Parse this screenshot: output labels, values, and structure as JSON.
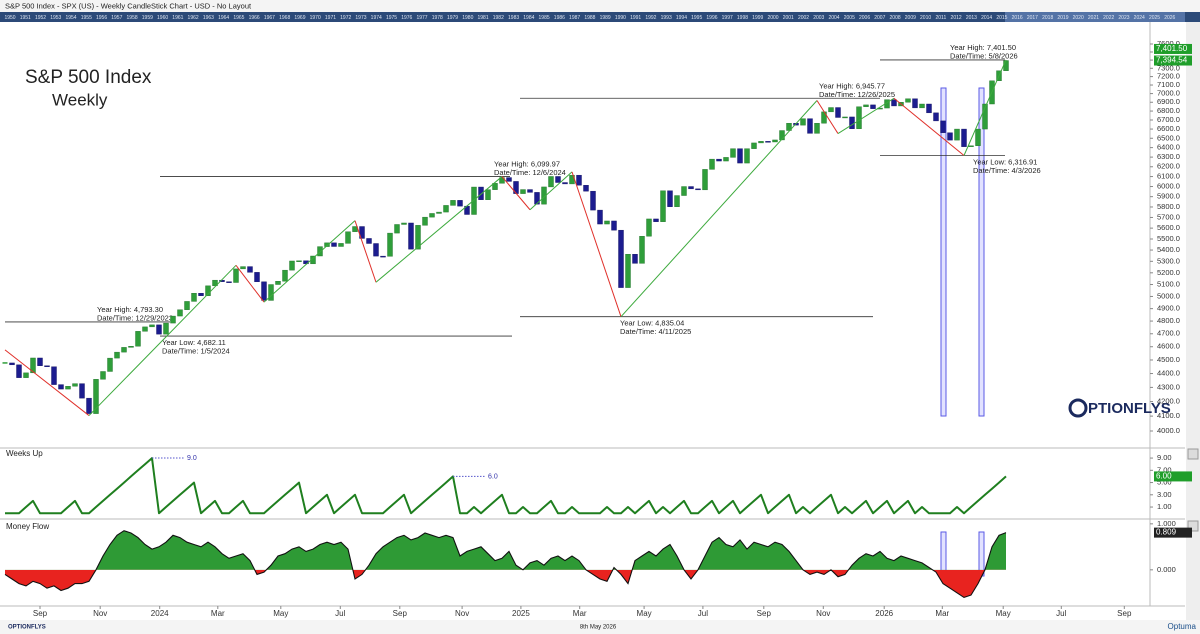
{
  "header": {
    "title": "S&P 500 Index - SPX (US) - Weekly CandleStick Chart - USD - No Layout"
  },
  "navigator_years": [
    1950,
    1951,
    1952,
    1953,
    1954,
    1955,
    1956,
    1957,
    1958,
    1959,
    1960,
    1961,
    1962,
    1963,
    1964,
    1965,
    1966,
    1967,
    1968,
    1969,
    1970,
    1971,
    1972,
    1973,
    1974,
    1975,
    1976,
    1977,
    1978,
    1979,
    1980,
    1981,
    1982,
    1983,
    1984,
    1985,
    1986,
    1987,
    1988,
    1989,
    1990,
    1991,
    1992,
    1993,
    1994,
    1995,
    1996,
    1997,
    1998,
    1999,
    2000,
    2001,
    2002,
    2003,
    2004,
    2005,
    2006,
    2007,
    2008,
    2009,
    2010,
    2011,
    2012,
    2013,
    2014,
    2015,
    2016,
    2017,
    2018,
    2019,
    2020,
    2021,
    2022,
    2023,
    2024,
    2025,
    2026
  ],
  "logo": {
    "text": "PTIONFLYS"
  },
  "footer": {
    "left": "OPTIONFLYS",
    "center": "8th May 2026",
    "right": "Optuma"
  },
  "chart_data": [
    {
      "type": "candlestick",
      "title": "S&P 500 Index",
      "subtitle": "Weekly",
      "color_up": "#2f9e3a",
      "color_down": "#1c1c8f",
      "close": [
        4478,
        4464,
        4370,
        4405,
        4515,
        4457,
        4450,
        4320,
        4288,
        4308,
        4327,
        4224,
        4117,
        4358,
        4415,
        4514,
        4559,
        4595,
        4604,
        4719,
        4754,
        4770,
        4697,
        4784,
        4840,
        4891,
        4959,
        5027,
        5006,
        5089,
        5137,
        5124,
        5117,
        5234,
        5254,
        5204,
        5123,
        4967,
        5100,
        5128,
        5223,
        5303,
        5305,
        5278,
        5347,
        5431,
        5465,
        5432,
        5460,
        5567,
        5615,
        5505,
        5459,
        5346,
        5344,
        5554,
        5634,
        5648,
        5408,
        5626,
        5703,
        5738,
        5751,
        5815,
        5864,
        5808,
        5728,
        5995,
        5870,
        5969,
        6032,
        6090,
        6051,
        5930,
        5970,
        5942,
        5827,
        5996,
        6101,
        6040,
        6026,
        6114,
        6013,
        5954,
        5770,
        5638,
        5667,
        5581,
        5074,
        5363,
        5282,
        5525,
        5686,
        5660,
        5958,
        5802,
        5911,
        6000,
        5977,
        5967,
        6173,
        6279,
        6259,
        6297,
        6389,
        6238,
        6389,
        6450,
        6467,
        6460,
        6482,
        6584,
        6664,
        6643,
        6715,
        6553,
        6664,
        6791,
        6840,
        6728,
        6734,
        6603,
        6849,
        6870,
        6827,
        6834,
        6930,
        6858,
        6900,
        6940,
        6836,
        6880,
        6780,
        6690,
        6560,
        6480,
        6600,
        6410,
        6420,
        6600,
        6880,
        7150,
        7270,
        7394.54
      ],
      "zigzag": {
        "x": [
          0,
          12,
          33,
          37,
          50,
          53,
          71,
          75,
          81,
          88,
          116,
          119,
          127,
          137,
          143
        ],
        "values": [
          4576,
          4103.78,
          5264.85,
          4953.56,
          5669.67,
          5119.26,
          6099.97,
          5773.31,
          6147.43,
          4835.04,
          6920.34,
          6550.78,
          6945.77,
          6316.91,
          7401.5
        ],
        "color_up": "#3daa3d",
        "color_down": "#e0302a"
      },
      "annotations": [
        {
          "label": "Year High: 4,793.30",
          "date": "Date/Time: 12/29/2023",
          "value": 4793.3
        },
        {
          "label": "Year Low: 4,682.11",
          "date": "Date/Time: 1/5/2024",
          "value": 4682.11
        },
        {
          "label": "Year High: 6,099.97",
          "date": "Date/Time: 12/6/2024",
          "value": 6099.97
        },
        {
          "label": "Year Low: 4,835.04",
          "date": "Date/Time: 4/11/2025",
          "value": 4835.04
        },
        {
          "label": "Year High: 6,945.77",
          "date": "Date/Time: 12/26/2025",
          "value": 6945.77
        },
        {
          "label": "Year Low: 6,316.91",
          "date": "Date/Time: 4/3/2026",
          "value": 6316.91
        },
        {
          "label": "Year High: 7,401.50",
          "date": "Date/Time: 5/8/2026",
          "value": 7401.5
        }
      ],
      "price_tags": [
        {
          "value": 7401.5,
          "label": "7,401.50"
        },
        {
          "value": 7394.54,
          "label": "7,394.54"
        }
      ],
      "log_scale": true,
      "xlim": [
        0,
        165
      ],
      "ylim": [
        4000,
        7600
      ],
      "yticks": [
        {
          "value": 4000,
          "label": "4000.0"
        },
        {
          "value": 4100,
          "label": "4100.0"
        },
        {
          "value": 4200,
          "label": "4200.0"
        },
        {
          "value": 4300,
          "label": "4300.0"
        },
        {
          "value": 4400,
          "label": "4400.0"
        },
        {
          "value": 4500,
          "label": "4500.0"
        },
        {
          "value": 4600,
          "label": "4600.0"
        },
        {
          "value": 4700,
          "label": "4700.0"
        },
        {
          "value": 4800,
          "label": "4800.0"
        },
        {
          "value": 4900,
          "label": "4900.0"
        },
        {
          "value": 5000,
          "label": "5000.0"
        },
        {
          "value": 5100,
          "label": "5100.0"
        },
        {
          "value": 5200,
          "label": "5200.0"
        },
        {
          "value": 5300,
          "label": "5300.0"
        },
        {
          "value": 5400,
          "label": "5400.0"
        },
        {
          "value": 5500,
          "label": "5500.0"
        },
        {
          "value": 5600,
          "label": "5600.0"
        },
        {
          "value": 5700,
          "label": "5700.0"
        },
        {
          "value": 5800,
          "label": "5800.0"
        },
        {
          "value": 5900,
          "label": "5900.0"
        },
        {
          "value": 6000,
          "label": "6000.0"
        },
        {
          "value": 6100,
          "label": "6100.0"
        },
        {
          "value": 6200,
          "label": "6200.0"
        },
        {
          "value": 6300,
          "label": "6300.0"
        },
        {
          "value": 6400,
          "label": "6400.0"
        },
        {
          "value": 6500,
          "label": "6500.0"
        },
        {
          "value": 6600,
          "label": "6600.0"
        },
        {
          "value": 6700,
          "label": "6700.0"
        },
        {
          "value": 6800,
          "label": "6800.0"
        },
        {
          "value": 6900,
          "label": "6900.0"
        },
        {
          "value": 7000,
          "label": "7000.0"
        },
        {
          "value": 7100,
          "label": "7100.0"
        },
        {
          "value": 7200,
          "label": "7200.0"
        },
        {
          "value": 7300,
          "label": "7300.0"
        },
        {
          "value": 7400,
          "label": "7400.0"
        },
        {
          "value": 7500,
          "label": "7500.0"
        },
        {
          "value": 7600,
          "label": "7600.0"
        }
      ]
    },
    {
      "type": "line",
      "title": "Weeks Up",
      "color": "#1f7f1f",
      "values": [
        0,
        0,
        0,
        1,
        2,
        0,
        0,
        0,
        0,
        1,
        2,
        0,
        0,
        1,
        2,
        3,
        4,
        5,
        6,
        7,
        8,
        9,
        0,
        1,
        2,
        3,
        4,
        5,
        0,
        1,
        2,
        0,
        0,
        1,
        2,
        0,
        0,
        0,
        1,
        2,
        3,
        4,
        5,
        0,
        1,
        2,
        3,
        0,
        1,
        2,
        3,
        0,
        0,
        0,
        0,
        1,
        2,
        3,
        0,
        1,
        2,
        3,
        4,
        5,
        6,
        0,
        0,
        1,
        0,
        1,
        2,
        3,
        0,
        0,
        1,
        0,
        0,
        1,
        2,
        0,
        0,
        1,
        0,
        0,
        0,
        0,
        1,
        0,
        0,
        1,
        0,
        1,
        2,
        0,
        1,
        0,
        1,
        2,
        0,
        0,
        1,
        2,
        0,
        1,
        2,
        0,
        1,
        2,
        3,
        0,
        1,
        2,
        3,
        0,
        1,
        0,
        1,
        2,
        3,
        0,
        1,
        0,
        1,
        2,
        0,
        1,
        2,
        0,
        1,
        2,
        0,
        1,
        0,
        0,
        0,
        0,
        1,
        0,
        1,
        2,
        3,
        4,
        5,
        6
      ],
      "annotations": [
        {
          "x": 21,
          "value": 9,
          "label": "9.0"
        },
        {
          "x": 64,
          "value": 6,
          "label": "6.0"
        }
      ],
      "value_tag": {
        "value": 6,
        "label": "6.00"
      },
      "xlim": [
        0,
        165
      ],
      "ylim": [
        -0.3,
        9.5
      ],
      "yticks": [
        {
          "value": 1,
          "label": "1.00"
        },
        {
          "value": 3,
          "label": "3.00"
        },
        {
          "value": 5,
          "label": "5.00"
        },
        {
          "value": 7,
          "label": "7.00"
        },
        {
          "value": 9,
          "label": "9.00"
        }
      ]
    },
    {
      "type": "area",
      "title": "Money Flow",
      "color_pos": "#2e9a35",
      "color_neg": "#e8231f",
      "values": [
        -0.1,
        -0.2,
        -0.3,
        -0.35,
        -0.25,
        -0.3,
        -0.4,
        -0.35,
        -0.45,
        -0.4,
        -0.3,
        -0.3,
        -0.25,
        0.0,
        0.3,
        0.55,
        0.75,
        0.85,
        0.8,
        0.7,
        0.55,
        0.45,
        0.5,
        0.6,
        0.75,
        0.7,
        0.6,
        0.55,
        0.5,
        0.6,
        0.5,
        0.35,
        0.25,
        0.3,
        0.35,
        0.2,
        -0.1,
        -0.05,
        0.1,
        0.3,
        0.35,
        0.45,
        0.5,
        0.4,
        0.45,
        0.55,
        0.6,
        0.55,
        0.6,
        0.45,
        -0.2,
        -0.1,
        0.1,
        0.35,
        0.5,
        0.6,
        0.7,
        0.75,
        0.65,
        0.7,
        0.8,
        0.75,
        0.7,
        0.75,
        0.7,
        0.3,
        0.4,
        0.45,
        0.5,
        0.35,
        0.2,
        0.25,
        0.4,
        0.1,
        0.0,
        0.15,
        0.2,
        0.1,
        0.25,
        0.3,
        0.2,
        0.3,
        0.2,
        0.0,
        -0.1,
        -0.2,
        -0.25,
        0.05,
        -0.1,
        -0.3,
        0.2,
        0.3,
        0.4,
        0.3,
        0.45,
        0.55,
        0.3,
        0.0,
        -0.2,
        0.0,
        0.3,
        0.6,
        0.7,
        0.55,
        0.5,
        0.65,
        0.45,
        0.6,
        0.55,
        0.5,
        0.6,
        0.55,
        0.4,
        0.2,
        0.0,
        -0.1,
        -0.05,
        -0.1,
        0.0,
        -0.15,
        -0.1,
        0.1,
        0.25,
        0.35,
        0.3,
        0.4,
        0.25,
        0.2,
        0.3,
        0.25,
        0.2,
        0.15,
        0.05,
        -0.05,
        -0.3,
        -0.4,
        -0.5,
        -0.6,
        -0.55,
        -0.3,
        0.0,
        0.5,
        0.75,
        0.809
      ],
      "value_tag": {
        "value": 0.809,
        "label": "0.809"
      },
      "xlim": [
        0,
        165
      ],
      "ylim": [
        -0.83,
        1.04
      ],
      "yticks": [
        {
          "value": 0,
          "label": "0.000"
        },
        {
          "value": 1,
          "label": "1.000"
        }
      ],
      "xticks": [
        {
          "value": 5,
          "label": "Sep"
        },
        {
          "value": 13.6,
          "label": "Nov"
        },
        {
          "value": 22.1,
          "label": "2024"
        },
        {
          "value": 30.4,
          "label": "Mar"
        },
        {
          "value": 39.4,
          "label": "May"
        },
        {
          "value": 47.9,
          "label": "Jul"
        },
        {
          "value": 56.4,
          "label": "Sep"
        },
        {
          "value": 65.3,
          "label": "Nov"
        },
        {
          "value": 73.7,
          "label": "2025"
        },
        {
          "value": 82.1,
          "label": "Mar"
        },
        {
          "value": 91.3,
          "label": "May"
        },
        {
          "value": 99.7,
          "label": "Jul"
        },
        {
          "value": 108.4,
          "label": "Sep"
        },
        {
          "value": 116.9,
          "label": "Nov"
        },
        {
          "value": 125.6,
          "label": "2026"
        },
        {
          "value": 133.9,
          "label": "Mar"
        },
        {
          "value": 142.6,
          "label": "May"
        },
        {
          "value": 150.9,
          "label": "Jul"
        },
        {
          "value": 159.9,
          "label": "Sep"
        }
      ]
    }
  ]
}
